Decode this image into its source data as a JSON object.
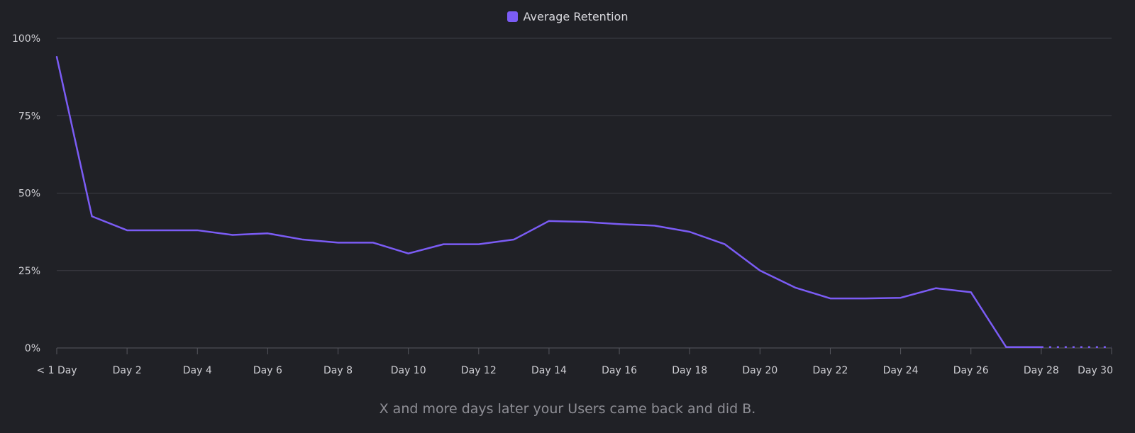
{
  "legend": {
    "label": "Average Retention"
  },
  "caption": "X and more days later your Users came back and did B.",
  "colors": {
    "series": "#7b5cf5",
    "grid": "#3d3e45",
    "axis": "#56575e",
    "background": "#202126"
  },
  "chart_data": {
    "type": "line",
    "title": "",
    "xlabel": "",
    "ylabel": "",
    "legend_position": "top-center",
    "grid": true,
    "ylim": [
      0,
      100
    ],
    "y_ticks": [
      "0%",
      "25%",
      "50%",
      "75%",
      "100%"
    ],
    "y_tick_values": [
      0,
      25,
      50,
      75,
      100
    ],
    "categories": [
      "< 1 Day",
      "Day 1",
      "Day 2",
      "Day 3",
      "Day 4",
      "Day 5",
      "Day 6",
      "Day 7",
      "Day 8",
      "Day 9",
      "Day 10",
      "Day 11",
      "Day 12",
      "Day 13",
      "Day 14",
      "Day 15",
      "Day 16",
      "Day 17",
      "Day 18",
      "Day 19",
      "Day 20",
      "Day 21",
      "Day 22",
      "Day 23",
      "Day 24",
      "Day 25",
      "Day 26",
      "Day 27",
      "Day 28",
      "Day 29",
      "Day 30"
    ],
    "x_tick_labels": [
      "< 1 Day",
      "Day 2",
      "Day 4",
      "Day 6",
      "Day 8",
      "Day 10",
      "Day 12",
      "Day 14",
      "Day 16",
      "Day 18",
      "Day 20",
      "Day 22",
      "Day 24",
      "Day 26",
      "Day 28",
      "Day 30"
    ],
    "x_tick_indices": [
      0,
      2,
      4,
      6,
      8,
      10,
      12,
      14,
      16,
      18,
      20,
      22,
      24,
      26,
      28,
      30
    ],
    "series": [
      {
        "name": "Average Retention",
        "values": [
          94,
          42.5,
          38,
          38,
          38,
          36.5,
          37,
          35,
          34,
          34,
          30.5,
          33.5,
          33.5,
          35,
          41,
          40.7,
          40,
          39.5,
          37.5,
          33.5,
          25,
          19.5,
          16,
          16,
          16.2,
          19.3,
          18,
          0.3,
          0.3,
          0.3,
          0.3
        ],
        "dashed_from_index": 28
      }
    ]
  }
}
